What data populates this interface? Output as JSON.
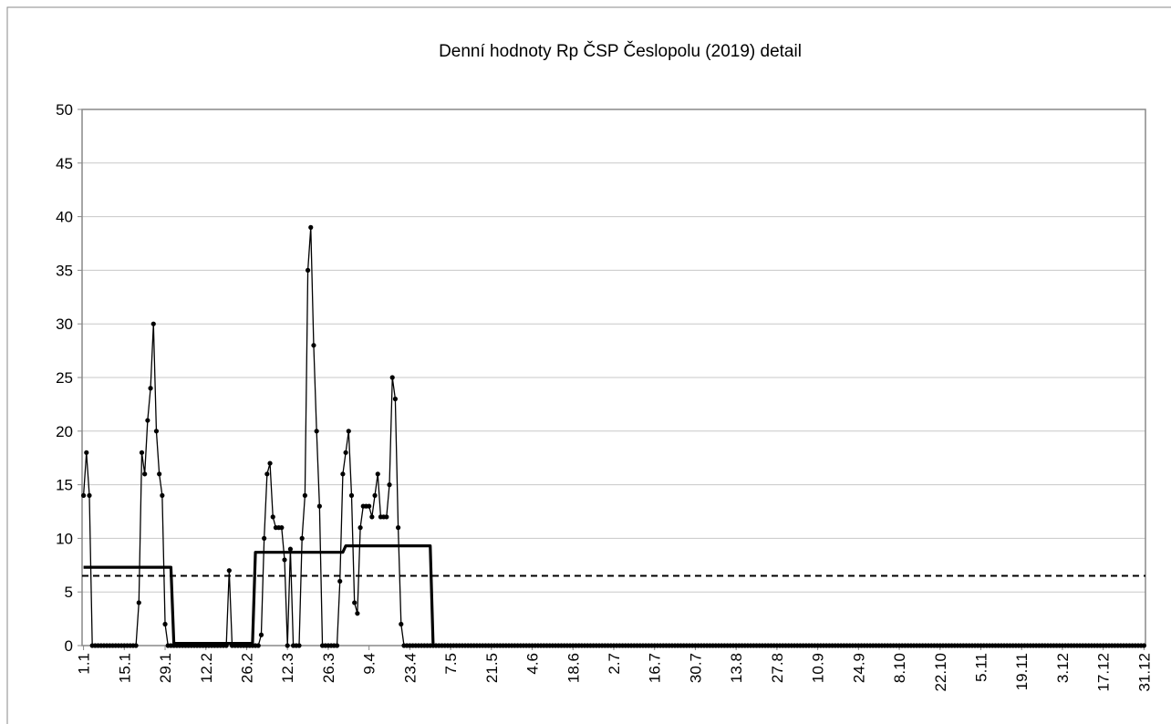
{
  "chart_data": {
    "type": "line",
    "title": "Denní hodnoty Rp ČSP  Česlopolu (2019) detail",
    "categories": [
      "1.1",
      null,
      null,
      null,
      null,
      null,
      null,
      null,
      null,
      null,
      null,
      null,
      null,
      null,
      "15.1",
      null,
      null,
      null,
      null,
      null,
      null,
      null,
      null,
      null,
      null,
      null,
      null,
      null,
      "29.1",
      null,
      null,
      null,
      null,
      null,
      null,
      null,
      null,
      null,
      null,
      null,
      null,
      null,
      "12.2",
      null,
      null,
      null,
      null,
      null,
      null,
      null,
      null,
      null,
      null,
      null,
      null,
      null,
      "26.2",
      null,
      null,
      null,
      null,
      null,
      null,
      null,
      null,
      null,
      null,
      null,
      null,
      null,
      "12.3",
      null,
      null,
      null,
      null,
      null,
      null,
      null,
      null,
      null,
      null,
      null,
      null,
      null,
      "26.3",
      null,
      null,
      null,
      null,
      null,
      null,
      null,
      null,
      null,
      null,
      null,
      null,
      null,
      "9.4",
      null,
      null,
      null,
      null,
      null,
      null,
      null,
      null,
      null,
      null,
      null,
      null,
      null,
      "23.4",
      null,
      null,
      null,
      null,
      null,
      null,
      null,
      null,
      null,
      null,
      null,
      null,
      null,
      "7.5",
      null,
      null,
      null,
      null,
      null,
      null,
      null,
      null,
      null,
      null,
      null,
      null,
      null,
      "21.5",
      null,
      null,
      null,
      null,
      null,
      null,
      null,
      null,
      null,
      null,
      null,
      null,
      null,
      "4.6",
      null,
      null,
      null,
      null,
      null,
      null,
      null,
      null,
      null,
      null,
      null,
      null,
      null,
      "18.6",
      null,
      null,
      null,
      null,
      null,
      null,
      null,
      null,
      null,
      null,
      null,
      null,
      null,
      "2.7",
      null,
      null,
      null,
      null,
      null,
      null,
      null,
      null,
      null,
      null,
      null,
      null,
      null,
      "16.7",
      null,
      null,
      null,
      null,
      null,
      null,
      null,
      null,
      null,
      null,
      null,
      null,
      null,
      "30.7",
      null,
      null,
      null,
      null,
      null,
      null,
      null,
      null,
      null,
      null,
      null,
      null,
      null,
      "13.8",
      null,
      null,
      null,
      null,
      null,
      null,
      null,
      null,
      null,
      null,
      null,
      null,
      null,
      "27.8",
      null,
      null,
      null,
      null,
      null,
      null,
      null,
      null,
      null,
      null,
      null,
      null,
      null,
      "10.9",
      null,
      null,
      null,
      null,
      null,
      null,
      null,
      null,
      null,
      null,
      null,
      null,
      null,
      "24.9",
      null,
      null,
      null,
      null,
      null,
      null,
      null,
      null,
      null,
      null,
      null,
      null,
      null,
      "8.10",
      null,
      null,
      null,
      null,
      null,
      null,
      null,
      null,
      null,
      null,
      null,
      null,
      null,
      "22.10",
      null,
      null,
      null,
      null,
      null,
      null,
      null,
      null,
      null,
      null,
      null,
      null,
      null,
      "5.11",
      null,
      null,
      null,
      null,
      null,
      null,
      null,
      null,
      null,
      null,
      null,
      null,
      null,
      "19.11",
      null,
      null,
      null,
      null,
      null,
      null,
      null,
      null,
      null,
      null,
      null,
      null,
      null,
      "3.12",
      null,
      null,
      null,
      null,
      null,
      null,
      null,
      null,
      null,
      null,
      null,
      null,
      null,
      "17.12",
      null,
      null,
      null,
      null,
      null,
      null,
      null,
      null,
      null,
      null,
      null,
      null,
      null,
      "31.12"
    ],
    "series": [
      {
        "color": "#000000",
        "markers": true,
        "values": [
          14,
          18,
          14,
          0,
          0,
          0,
          0,
          0,
          0,
          0,
          0,
          0,
          0,
          0,
          0,
          0,
          0,
          0,
          0,
          4,
          18,
          16,
          21,
          24,
          30,
          20,
          16,
          14,
          2,
          0,
          0,
          0,
          0,
          0,
          0,
          0,
          0,
          0,
          0,
          0,
          0,
          0,
          0,
          0,
          0,
          0,
          0,
          0,
          0,
          0,
          7,
          0,
          0,
          0,
          0,
          0,
          0,
          0,
          0,
          0,
          0,
          1,
          10,
          16,
          17,
          12,
          11,
          11,
          11,
          8,
          0,
          9,
          0,
          0,
          0,
          10,
          14,
          35,
          39,
          28,
          20,
          13,
          0,
          0,
          0,
          0,
          0,
          0,
          6,
          16,
          18,
          20,
          14,
          4,
          3,
          11,
          13,
          13,
          13,
          12,
          14,
          16,
          12,
          12,
          12,
          15,
          25,
          23,
          11,
          2,
          0,
          0,
          0,
          0,
          0,
          0,
          0,
          0,
          0,
          0,
          0,
          0,
          0,
          0,
          0,
          0,
          0,
          0,
          0,
          0,
          0,
          0,
          0,
          0,
          0,
          0,
          0,
          0,
          0,
          0,
          0,
          0,
          0,
          0,
          0,
          0,
          0,
          0,
          0,
          0,
          0,
          0,
          0,
          0,
          0,
          0,
          0,
          0,
          0,
          0,
          0,
          0,
          0,
          0,
          0,
          0,
          0,
          0,
          0,
          0,
          0,
          0,
          0,
          0,
          0,
          0,
          0,
          0,
          0,
          0,
          0,
          0,
          0,
          0,
          0,
          0,
          0,
          0,
          0,
          0,
          0,
          0,
          0,
          0,
          0,
          0,
          0,
          0,
          0,
          0,
          0,
          0,
          0,
          0,
          0,
          0,
          0,
          0,
          0,
          0,
          0,
          0,
          0,
          0,
          0,
          0,
          0,
          0,
          0,
          0,
          0,
          0,
          0,
          0,
          0,
          0,
          0,
          0,
          0,
          0,
          0,
          0,
          0,
          0,
          0,
          0,
          0,
          0,
          0,
          0,
          0,
          0,
          0,
          0,
          0,
          0,
          0,
          0,
          0,
          0,
          0,
          0,
          0,
          0,
          0,
          0,
          0,
          0,
          0,
          0,
          0,
          0,
          0,
          0,
          0,
          0,
          0,
          0,
          0,
          0,
          0,
          0,
          0,
          0,
          0,
          0,
          0,
          0,
          0,
          0,
          0,
          0,
          0,
          0,
          0,
          0,
          0,
          0,
          0,
          0,
          0,
          0,
          0,
          0,
          0,
          0,
          0,
          0,
          0,
          0,
          0,
          0,
          0,
          0,
          0,
          0,
          0,
          0,
          0,
          0,
          0,
          0,
          0,
          0,
          0,
          0,
          0,
          0,
          0,
          0,
          0,
          0,
          0,
          0,
          0,
          0,
          0,
          0,
          0,
          0,
          0,
          0,
          0,
          0,
          0,
          0,
          0,
          0,
          0,
          0,
          0,
          0,
          0,
          0,
          0,
          0,
          0,
          0,
          0,
          0,
          0,
          0,
          0,
          0,
          0,
          0,
          0,
          0,
          0,
          0,
          0,
          0,
          0,
          0,
          0
        ]
      },
      {
        "color": "#000000",
        "markers": false,
        "values": [
          7.3,
          7.3,
          7.3,
          7.3,
          7.3,
          7.3,
          7.3,
          7.3,
          7.3,
          7.3,
          7.3,
          7.3,
          7.3,
          7.3,
          7.3,
          7.3,
          7.3,
          7.3,
          7.3,
          7.3,
          7.3,
          7.3,
          7.3,
          7.3,
          7.3,
          7.3,
          7.3,
          7.3,
          7.3,
          7.3,
          7.3,
          0.2,
          0.2,
          0.2,
          0.2,
          0.2,
          0.2,
          0.2,
          0.2,
          0.2,
          0.2,
          0.2,
          0.2,
          0.2,
          0.2,
          0.2,
          0.2,
          0.2,
          0.2,
          0.2,
          0.2,
          0.2,
          0.2,
          0.2,
          0.2,
          0.2,
          0.2,
          0.2,
          0.2,
          8.7,
          8.7,
          8.7,
          8.7,
          8.7,
          8.7,
          8.7,
          8.7,
          8.7,
          8.7,
          8.7,
          8.7,
          8.7,
          8.7,
          8.7,
          8.7,
          8.7,
          8.7,
          8.7,
          8.7,
          8.7,
          8.7,
          8.7,
          8.7,
          8.7,
          8.7,
          8.7,
          8.7,
          8.7,
          8.7,
          8.7,
          9.3,
          9.3,
          9.3,
          9.3,
          9.3,
          9.3,
          9.3,
          9.3,
          9.3,
          9.3,
          9.3,
          9.3,
          9.3,
          9.3,
          9.3,
          9.3,
          9.3,
          9.3,
          9.3,
          9.3,
          9.3,
          9.3,
          9.3,
          9.3,
          9.3,
          9.3,
          9.3,
          9.3,
          9.3,
          9.3,
          0,
          0,
          0,
          0,
          0,
          0,
          0,
          0,
          0,
          0,
          0,
          0,
          0,
          0,
          0,
          0,
          0,
          0,
          0,
          0,
          0,
          0,
          0,
          0,
          0,
          0,
          0,
          0,
          0,
          0,
          0,
          0,
          0,
          0,
          0,
          0,
          0,
          0,
          0,
          0,
          0,
          0,
          0,
          0,
          0,
          0,
          0,
          0,
          0,
          0,
          0,
          0,
          0,
          0,
          0,
          0,
          0,
          0,
          0,
          0,
          0,
          0,
          0,
          0,
          0,
          0,
          0,
          0,
          0,
          0,
          0,
          0,
          0,
          0,
          0,
          0,
          0,
          0,
          0,
          0,
          0,
          0,
          0,
          0,
          0,
          0,
          0,
          0,
          0,
          0,
          0,
          0,
          0,
          0,
          0,
          0,
          0,
          0,
          0,
          0,
          0,
          0,
          0,
          0,
          0,
          0,
          0,
          0,
          0,
          0,
          0,
          0,
          0,
          0,
          0,
          0,
          0,
          0,
          0,
          0,
          0,
          0,
          0,
          0,
          0,
          0,
          0,
          0,
          0,
          0,
          0,
          0,
          0,
          0,
          0,
          0,
          0,
          0,
          0,
          0,
          0,
          0,
          0,
          0,
          0,
          0,
          0,
          0,
          0,
          0,
          0,
          0,
          0,
          0,
          0,
          0,
          0,
          0,
          0,
          0,
          0,
          0,
          0,
          0,
          0,
          0,
          0,
          0,
          0,
          0,
          0,
          0,
          0,
          0,
          0,
          0,
          0,
          0,
          0,
          0,
          0,
          0,
          0,
          0,
          0,
          0,
          0,
          0,
          0,
          0,
          0,
          0,
          0,
          0,
          0,
          0,
          0,
          0,
          0,
          0,
          0,
          0,
          0,
          0,
          0,
          0,
          0,
          0,
          0,
          0,
          0,
          0,
          0,
          0,
          0,
          0,
          0,
          0,
          0,
          0,
          0,
          0,
          0,
          0,
          0,
          0,
          0,
          0,
          0,
          0,
          0,
          0,
          0,
          0,
          0,
          0,
          0,
          0,
          0,
          0,
          0,
          0,
          0,
          0,
          0
        ]
      }
    ],
    "reference_line": {
      "value": 6.5,
      "style": "dashed",
      "color": "#000000"
    },
    "ylim": [
      0,
      50
    ],
    "yticks": [
      0,
      5,
      10,
      15,
      20,
      25,
      30,
      35,
      40,
      45,
      50
    ],
    "grid": true
  }
}
